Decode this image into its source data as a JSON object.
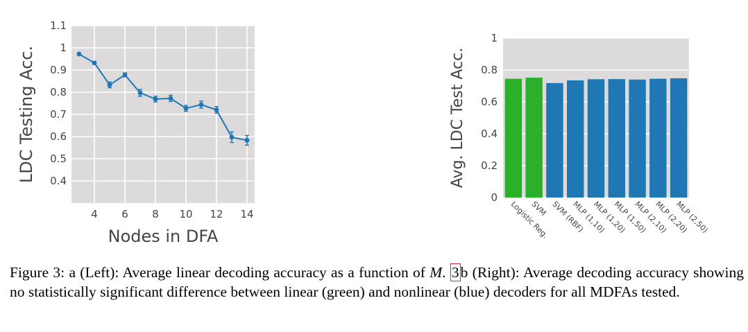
{
  "chart_data": [
    {
      "type": "line",
      "ylabel": "LDC Testing Acc.",
      "xlabel": "Nodes in DFA",
      "xlim": [
        2.5,
        14.5
      ],
      "ylim": [
        0.3,
        1.1
      ],
      "xticks": [
        4,
        6,
        8,
        10,
        12,
        14
      ],
      "yticks": [
        0.4,
        0.5,
        0.6,
        0.7,
        0.8,
        0.9,
        1,
        1.1
      ],
      "ytick_labels": [
        "0.4",
        "0.5",
        "0.6",
        "0.7",
        "0.8",
        "0.9",
        "1",
        "1.1"
      ],
      "grid": true,
      "background": "#dcdada",
      "series": [
        {
          "x": [
            3,
            4,
            5,
            6,
            7,
            8,
            9,
            10,
            11,
            12,
            13,
            14
          ],
          "values": [
            0.972,
            0.932,
            0.833,
            0.878,
            0.797,
            0.769,
            0.772,
            0.727,
            0.744,
            0.72,
            0.597,
            0.583
          ],
          "error": [
            0.005,
            0.006,
            0.013,
            0.009,
            0.015,
            0.013,
            0.014,
            0.013,
            0.016,
            0.015,
            0.024,
            0.022
          ],
          "color": "#1f77b4"
        }
      ]
    },
    {
      "type": "bar",
      "ylabel": "Avg. LDC Test Acc.",
      "xlabel": "",
      "ylim": [
        0,
        1
      ],
      "yticks": [
        0,
        0.2,
        0.4,
        0.6,
        0.8,
        1
      ],
      "ytick_labels": [
        "0",
        "0.2",
        "0.4",
        "0.6",
        "0.8",
        "1"
      ],
      "grid": true,
      "background": "#dcdada",
      "categories": [
        "Logistic Reg.",
        "SVM",
        "SVM (RBF)",
        "MLP (1,10)",
        "MLP (1,20)",
        "MLP (1,50)",
        "MLP (2,10)",
        "MLP (2,20)",
        "MLP (2,50)"
      ],
      "values": [
        0.745,
        0.752,
        0.718,
        0.735,
        0.742,
        0.743,
        0.74,
        0.745,
        0.748
      ],
      "colors": [
        "#2ab02a",
        "#2ab02a",
        "#1f77b4",
        "#1f77b4",
        "#1f77b4",
        "#1f77b4",
        "#1f77b4",
        "#1f77b4",
        "#1f77b4"
      ]
    }
  ],
  "caption": {
    "part1": "Figure 3: a (Left): Average linear decoding accuracy as a function of ",
    "math": "M",
    "part2": ". ",
    "ref": "3",
    "part3": "b (Right): Average decoding accuracy showing no statistically significant difference between linear (green) and nonlinear (blue) decoders for all MDFAs tested."
  }
}
